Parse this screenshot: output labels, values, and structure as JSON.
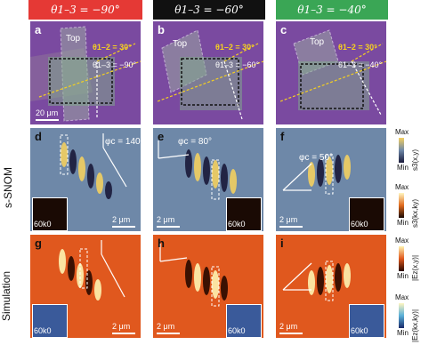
{
  "columns": [
    {
      "header": "θ1–3 = −90°",
      "color": "#e53935"
    },
    {
      "header": "θ1–3 = −60°",
      "color": "#111111"
    },
    {
      "header": "θ1–3 = −40°",
      "color": "#3aa655"
    }
  ],
  "rows": {
    "optical": {
      "labels": [
        "a",
        "b",
        "c"
      ],
      "top_label": "Top",
      "theta12": "θ1–2 = 30°",
      "theta13": [
        "θ1–3 = −90°",
        "θ1–3 = −60°",
        "θ1–3 = −40°"
      ],
      "scalebar": "20 μm"
    },
    "snom": {
      "row_label": "s-SNOM",
      "labels": [
        "d",
        "e",
        "f"
      ],
      "phi": [
        "φc = 140°",
        "φc = 80°",
        "φc = 50°"
      ],
      "scalebar": "2 μm",
      "inset_label": "60k0"
    },
    "sim": {
      "row_label": "Simulation",
      "labels": [
        "g",
        "h",
        "i"
      ],
      "scalebar": "2 μm",
      "inset_label": "60k0"
    }
  },
  "colorbars": [
    {
      "max": "Max",
      "min": "Min",
      "name": "s3(x,y)"
    },
    {
      "max": "Max",
      "min": "Min",
      "name": "s3(kx,ky)"
    },
    {
      "max": "Max",
      "min": "Min",
      "name": "|Ez(x,y)|"
    },
    {
      "max": "Max",
      "min": "Min",
      "name": "|Ez(kx,ky)|"
    }
  ],
  "colors": {
    "optical_bg": "#7a4aa0",
    "snom_bg": "#6e88a8",
    "sim_bg": "#e0581e",
    "annotation_yellow": "#f5d020"
  }
}
